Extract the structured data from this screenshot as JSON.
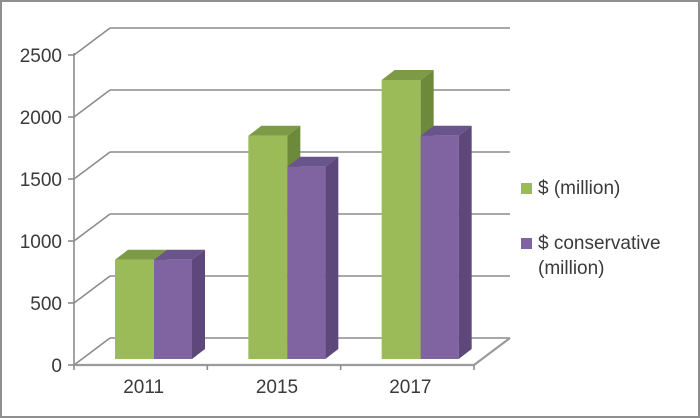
{
  "frame": {
    "background_color": "#ffffff",
    "border_color": "#8f8f8f"
  },
  "chart_data": {
    "type": "bar",
    "subtype": "3d-clustered-column",
    "title": "",
    "xlabel": "",
    "ylabel": "",
    "categories": [
      "2011",
      "2015",
      "2017"
    ],
    "series": [
      {
        "name": "$ (million)",
        "color": "#9bbb59",
        "color_top": "#7d9a47",
        "color_side": "#6d8a3a",
        "values": [
          800,
          1800,
          2250
        ]
      },
      {
        "name": "$ conservative (million)",
        "color": "#8064a2",
        "color_top": "#6a548c",
        "color_side": "#5d477b",
        "values": [
          800,
          1550,
          1800
        ]
      }
    ],
    "ylim": [
      0,
      2500
    ],
    "ytick_interval": 500,
    "ytick_labels": [
      "0",
      "500",
      "1000",
      "1500",
      "2000",
      "2500"
    ],
    "grid": true,
    "legend_position": "right",
    "gridline_color": "#8c8c8c",
    "floor_line_color": "#9a9a9a",
    "text_color": "#3a3a3a"
  },
  "legend": {
    "items": [
      {
        "label": "$ (million)",
        "swatch_color": "#9bbb59"
      },
      {
        "label": "$ conservative (million)",
        "swatch_color": "#8064a2"
      }
    ]
  }
}
